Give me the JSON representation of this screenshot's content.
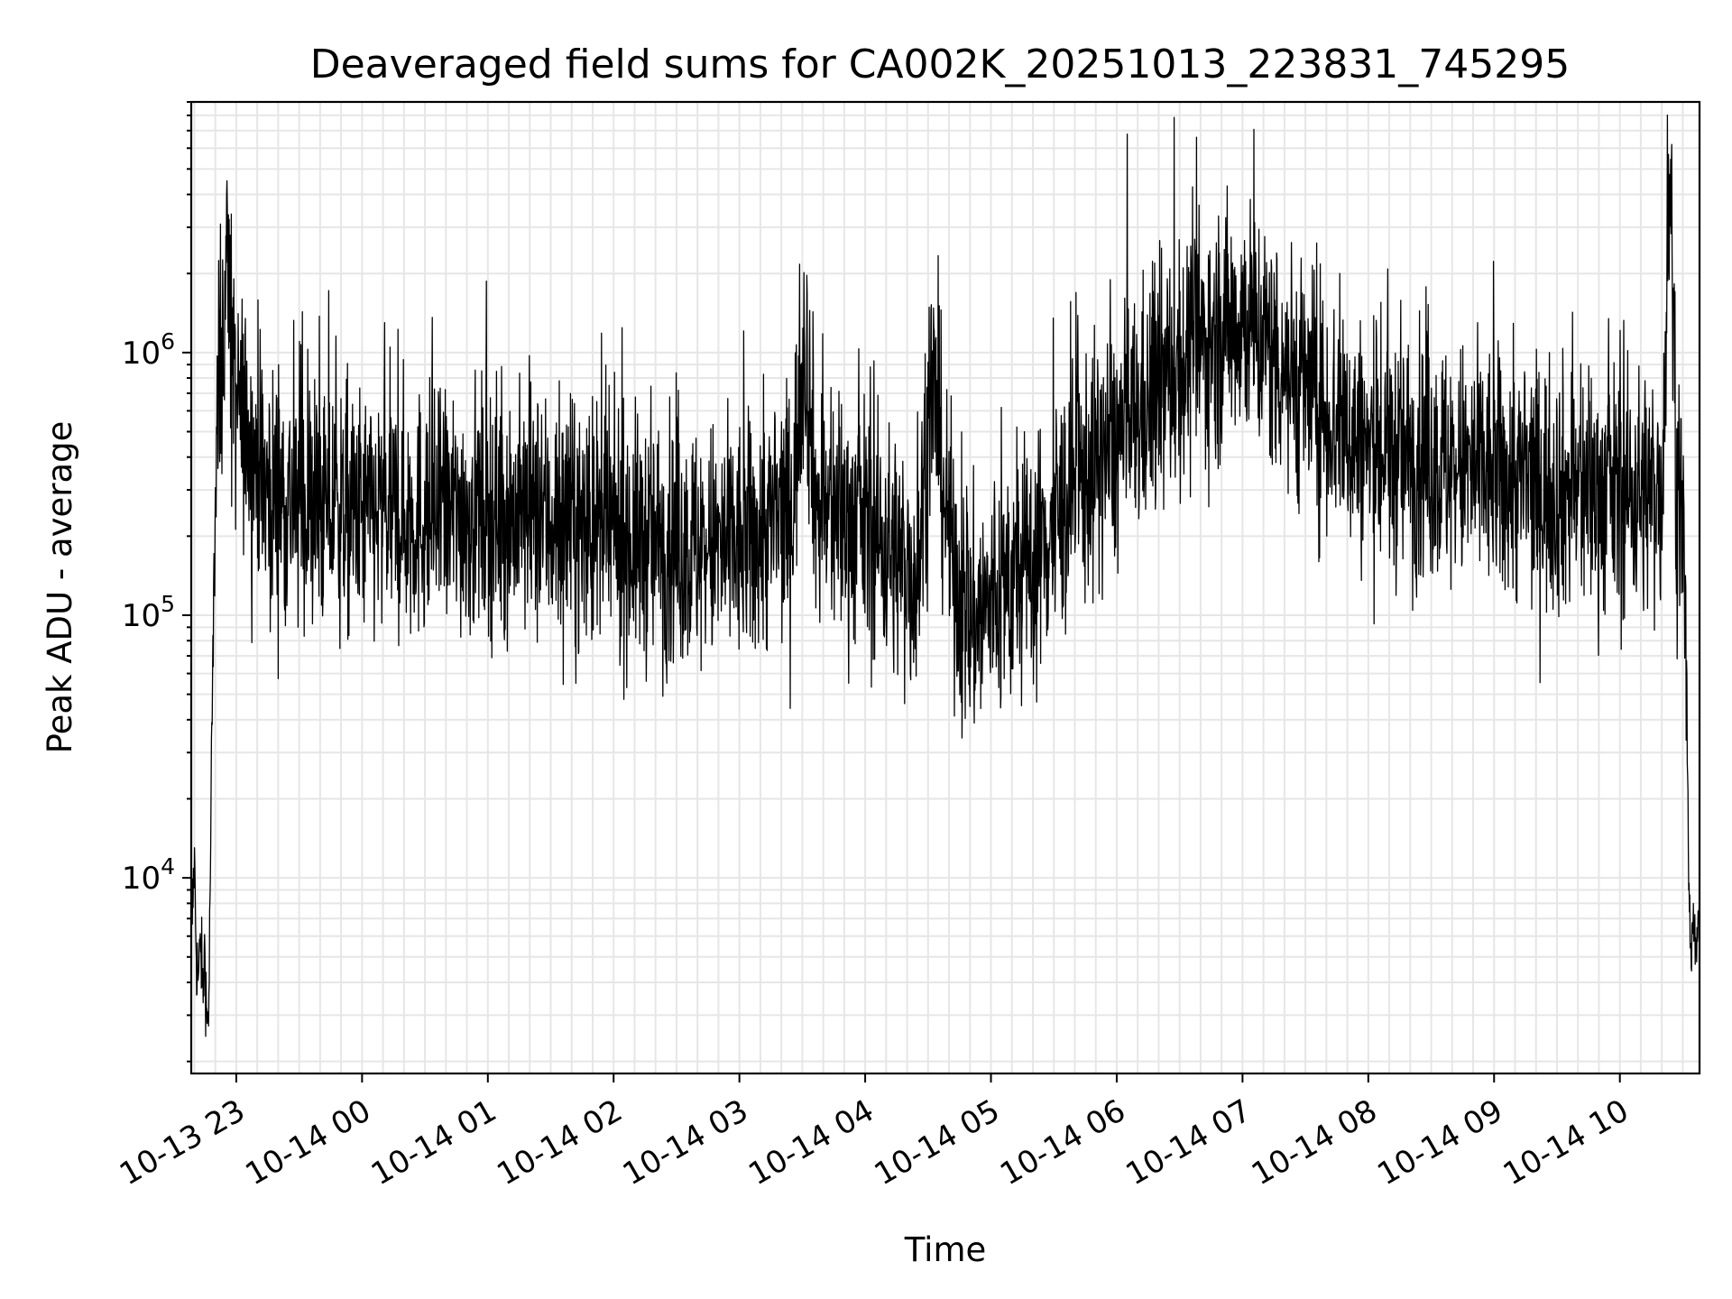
{
  "chart_data": {
    "type": "line",
    "title": "Deaveraged field sums for CA002K_20251013_223831_745295",
    "xlabel": "Time",
    "ylabel": "Peak ADU - average",
    "yscale": "log",
    "ylim": [
      1800,
      9000000
    ],
    "xlim": [
      "2025-10-13 22:38:31",
      "2025-10-14 10:38:00"
    ],
    "grid": true,
    "x_ticks": [
      {
        "t": "2025-10-13 23:00",
        "label": "10-13 23"
      },
      {
        "t": "2025-10-14 00:00",
        "label": "10-14 00"
      },
      {
        "t": "2025-10-14 01:00",
        "label": "10-14 01"
      },
      {
        "t": "2025-10-14 02:00",
        "label": "10-14 02"
      },
      {
        "t": "2025-10-14 03:00",
        "label": "10-14 03"
      },
      {
        "t": "2025-10-14 04:00",
        "label": "10-14 04"
      },
      {
        "t": "2025-10-14 05:00",
        "label": "10-14 05"
      },
      {
        "t": "2025-10-14 06:00",
        "label": "10-14 06"
      },
      {
        "t": "2025-10-14 07:00",
        "label": "10-14 07"
      },
      {
        "t": "2025-10-14 08:00",
        "label": "10-14 08"
      },
      {
        "t": "2025-10-14 09:00",
        "label": "10-14 09"
      },
      {
        "t": "2025-10-14 10:00",
        "label": "10-14 10"
      }
    ],
    "y_ticks": [
      {
        "value": 10000,
        "base": "10",
        "exp": "4"
      },
      {
        "value": 100000,
        "base": "10",
        "exp": "5"
      },
      {
        "value": 1000000,
        "base": "10",
        "exp": "6"
      }
    ],
    "series": [
      {
        "color": "#000000",
        "points": [
          [
            "2025-10-13 22:38:31",
            9000
          ],
          [
            "2025-10-13 22:39:00",
            7000
          ],
          [
            "2025-10-13 22:40:00",
            12000
          ],
          [
            "2025-10-13 22:41:00",
            5000
          ],
          [
            "2025-10-13 22:42:00",
            4000
          ],
          [
            "2025-10-13 22:43:00",
            6000
          ],
          [
            "2025-10-13 22:44:00",
            3500
          ],
          [
            "2025-10-13 22:45:00",
            5500
          ],
          [
            "2025-10-13 22:46:00",
            2700
          ],
          [
            "2025-10-13 22:47:00",
            3500
          ],
          [
            "2025-10-13 22:48:00",
            20000
          ],
          [
            "2025-10-13 22:49:00",
            80000
          ],
          [
            "2025-10-13 22:50:00",
            250000
          ],
          [
            "2025-10-13 22:51:00",
            600000
          ],
          [
            "2025-10-13 22:52:00",
            1000000
          ],
          [
            "2025-10-13 22:54:00",
            1100000
          ],
          [
            "2025-10-13 22:56:00",
            2800000
          ],
          [
            "2025-10-13 22:58:00",
            700000
          ],
          [
            "2025-10-13 23:05:00",
            500000
          ],
          [
            "2025-10-13 23:15:00",
            300000
          ],
          [
            "2025-10-13 23:30:00",
            260000
          ],
          [
            "2025-10-14 00:00:00",
            240000
          ],
          [
            "2025-10-14 00:30:00",
            240000
          ],
          [
            "2025-10-14 01:00:00",
            250000
          ],
          [
            "2025-10-14 01:30:00",
            230000
          ],
          [
            "2025-10-14 02:00:00",
            200000
          ],
          [
            "2025-10-14 02:30:00",
            180000
          ],
          [
            "2025-10-14 03:00:00",
            180000
          ],
          [
            "2025-10-14 03:25:00",
            250000
          ],
          [
            "2025-10-14 03:31:00",
            1200000
          ],
          [
            "2025-10-14 03:37:00",
            250000
          ],
          [
            "2025-10-14 04:00:00",
            220000
          ],
          [
            "2025-10-14 04:25:00",
            140000
          ],
          [
            "2025-10-14 04:32:00",
            800000
          ],
          [
            "2025-10-14 04:40:00",
            200000
          ],
          [
            "2025-10-14 04:48:00",
            90000
          ],
          [
            "2025-10-14 05:00:00",
            110000
          ],
          [
            "2025-10-14 05:20:00",
            160000
          ],
          [
            "2025-10-14 05:40:00",
            300000
          ],
          [
            "2025-10-14 06:00:00",
            450000
          ],
          [
            "2025-10-14 06:30:00",
            900000
          ],
          [
            "2025-10-14 07:00:00",
            1400000
          ],
          [
            "2025-10-14 07:15:00",
            1000000
          ],
          [
            "2025-10-14 07:40:00",
            600000
          ],
          [
            "2025-10-14 08:00:00",
            420000
          ],
          [
            "2025-10-14 08:30:00",
            380000
          ],
          [
            "2025-10-14 09:00:00",
            340000
          ],
          [
            "2025-10-14 09:30:00",
            300000
          ],
          [
            "2025-10-14 10:00:00",
            290000
          ],
          [
            "2025-10-14 10:20:00",
            300000
          ],
          [
            "2025-10-14 10:24:00",
            5500000
          ],
          [
            "2025-10-14 10:27:00",
            300000
          ],
          [
            "2025-10-14 10:30:00",
            250000
          ],
          [
            "2025-10-14 10:32:00",
            40000
          ],
          [
            "2025-10-14 10:33:00",
            8000
          ],
          [
            "2025-10-14 10:34:00",
            4000
          ],
          [
            "2025-10-14 10:35:00",
            9000
          ],
          [
            "2025-10-14 10:36:00",
            5000
          ],
          [
            "2025-10-14 10:37:00",
            7000
          ],
          [
            "2025-10-14 10:38:00",
            5000
          ]
        ]
      }
    ]
  }
}
